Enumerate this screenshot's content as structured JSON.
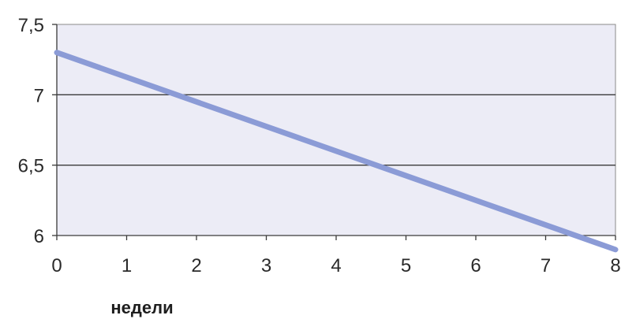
{
  "chart_data": {
    "type": "line",
    "title": "",
    "xlabel": "недели",
    "ylabel": "",
    "xlim": [
      0,
      8
    ],
    "ylim": [
      6,
      7.5
    ],
    "x_ticks": [
      0,
      1,
      2,
      3,
      4,
      5,
      6,
      7,
      8
    ],
    "x_tick_labels": [
      "0",
      "1",
      "2",
      "3",
      "4",
      "5",
      "6",
      "7",
      "8"
    ],
    "y_ticks": [
      6,
      6.5,
      7,
      7.5
    ],
    "y_tick_labels": [
      "6",
      "6,5",
      "7",
      "7,5"
    ],
    "grid": "horizontal",
    "legend": "none",
    "plot_background": "#ececf6",
    "line_color": "#8b9bd6",
    "series": [
      {
        "x": [
          0,
          8
        ],
        "values": [
          7.3,
          5.9
        ]
      }
    ]
  }
}
